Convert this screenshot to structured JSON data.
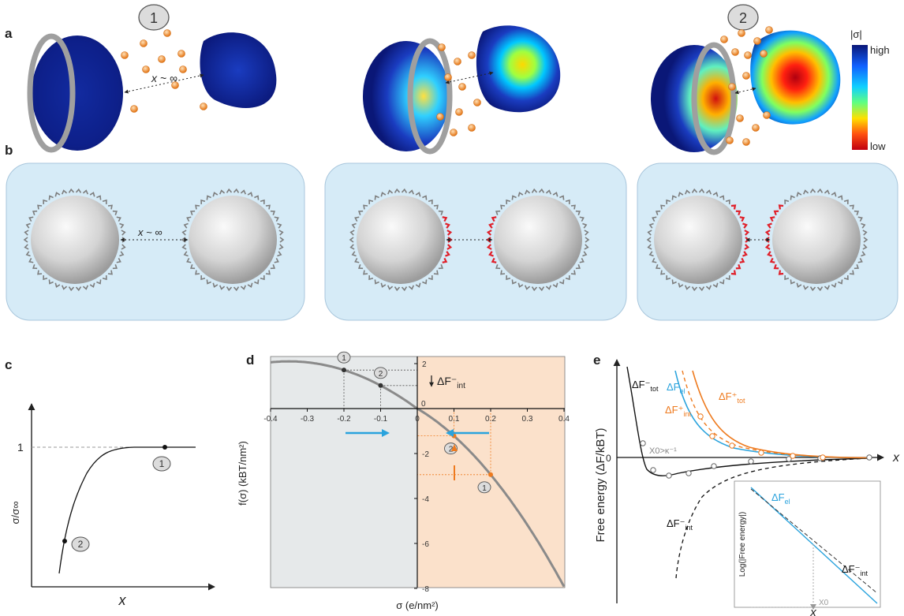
{
  "labels": {
    "a": "a",
    "b": "b",
    "c": "c",
    "d": "d",
    "e": "e"
  },
  "panel_a": {
    "state_markers": [
      "1",
      "2"
    ],
    "distance_label": "x ~ ∞",
    "colorbar_title": "|σ|",
    "colorbar_high": "high",
    "colorbar_low": "low"
  },
  "panel_b": {
    "distance_label": "x ~ ∞"
  },
  "panel_c": {
    "ylabel": "σ/σ∞",
    "xlabel": "x",
    "y_tick": "1",
    "points": [
      "1",
      "2"
    ]
  },
  "panel_d": {
    "ylabel": "f(σ) (kBT/nm²)",
    "xlabel": "σ (e/nm²)",
    "x_ticks": [
      "-0.4",
      "-0.3",
      "-0.2",
      "-0.1",
      "0",
      "0.1",
      "0.2",
      "0.3",
      "0.4"
    ],
    "y_ticks": [
      "2",
      "0",
      "-2",
      "-4",
      "-6",
      "-8"
    ],
    "annotation": "ΔF⁻",
    "annotation_sub": "int",
    "markers": [
      "1",
      "2",
      "2",
      "1"
    ]
  },
  "panel_e": {
    "ylabel": "Free energy (ΔF/kBT)",
    "xlabel": "x",
    "inset_ylabel": "Log(|Free energy|)",
    "inset_xlabel": "x",
    "x0_label": "X0",
    "x0_note": "X0>κ⁻¹",
    "zero": "0",
    "curves": {
      "tot_minus": "ΔF⁻",
      "tot_minus_sub": "tot",
      "el": "ΔF",
      "el_sub": "el",
      "int_plus": "ΔF⁺",
      "int_plus_sub": "int",
      "tot_plus": "ΔF⁺",
      "tot_plus_sub": "tot",
      "int_minus": "ΔF⁻",
      "int_minus_sub": "int"
    }
  },
  "colors": {
    "sphere_blue": "#0b1f8f",
    "shell_gray": "#a0a0a0",
    "ion_orange": "#f39a3c",
    "cell_bg": "#d6ebf7",
    "ligand_gray": "#7d7d7d",
    "ligand_red": "#e0202a",
    "curve_gray": "#8a8a8a",
    "shade_gray": "#e6e9ea",
    "shade_orange": "#fbe1cb",
    "el_blue": "#2aa3dd",
    "tot_orange": "#ee7a1e"
  }
}
